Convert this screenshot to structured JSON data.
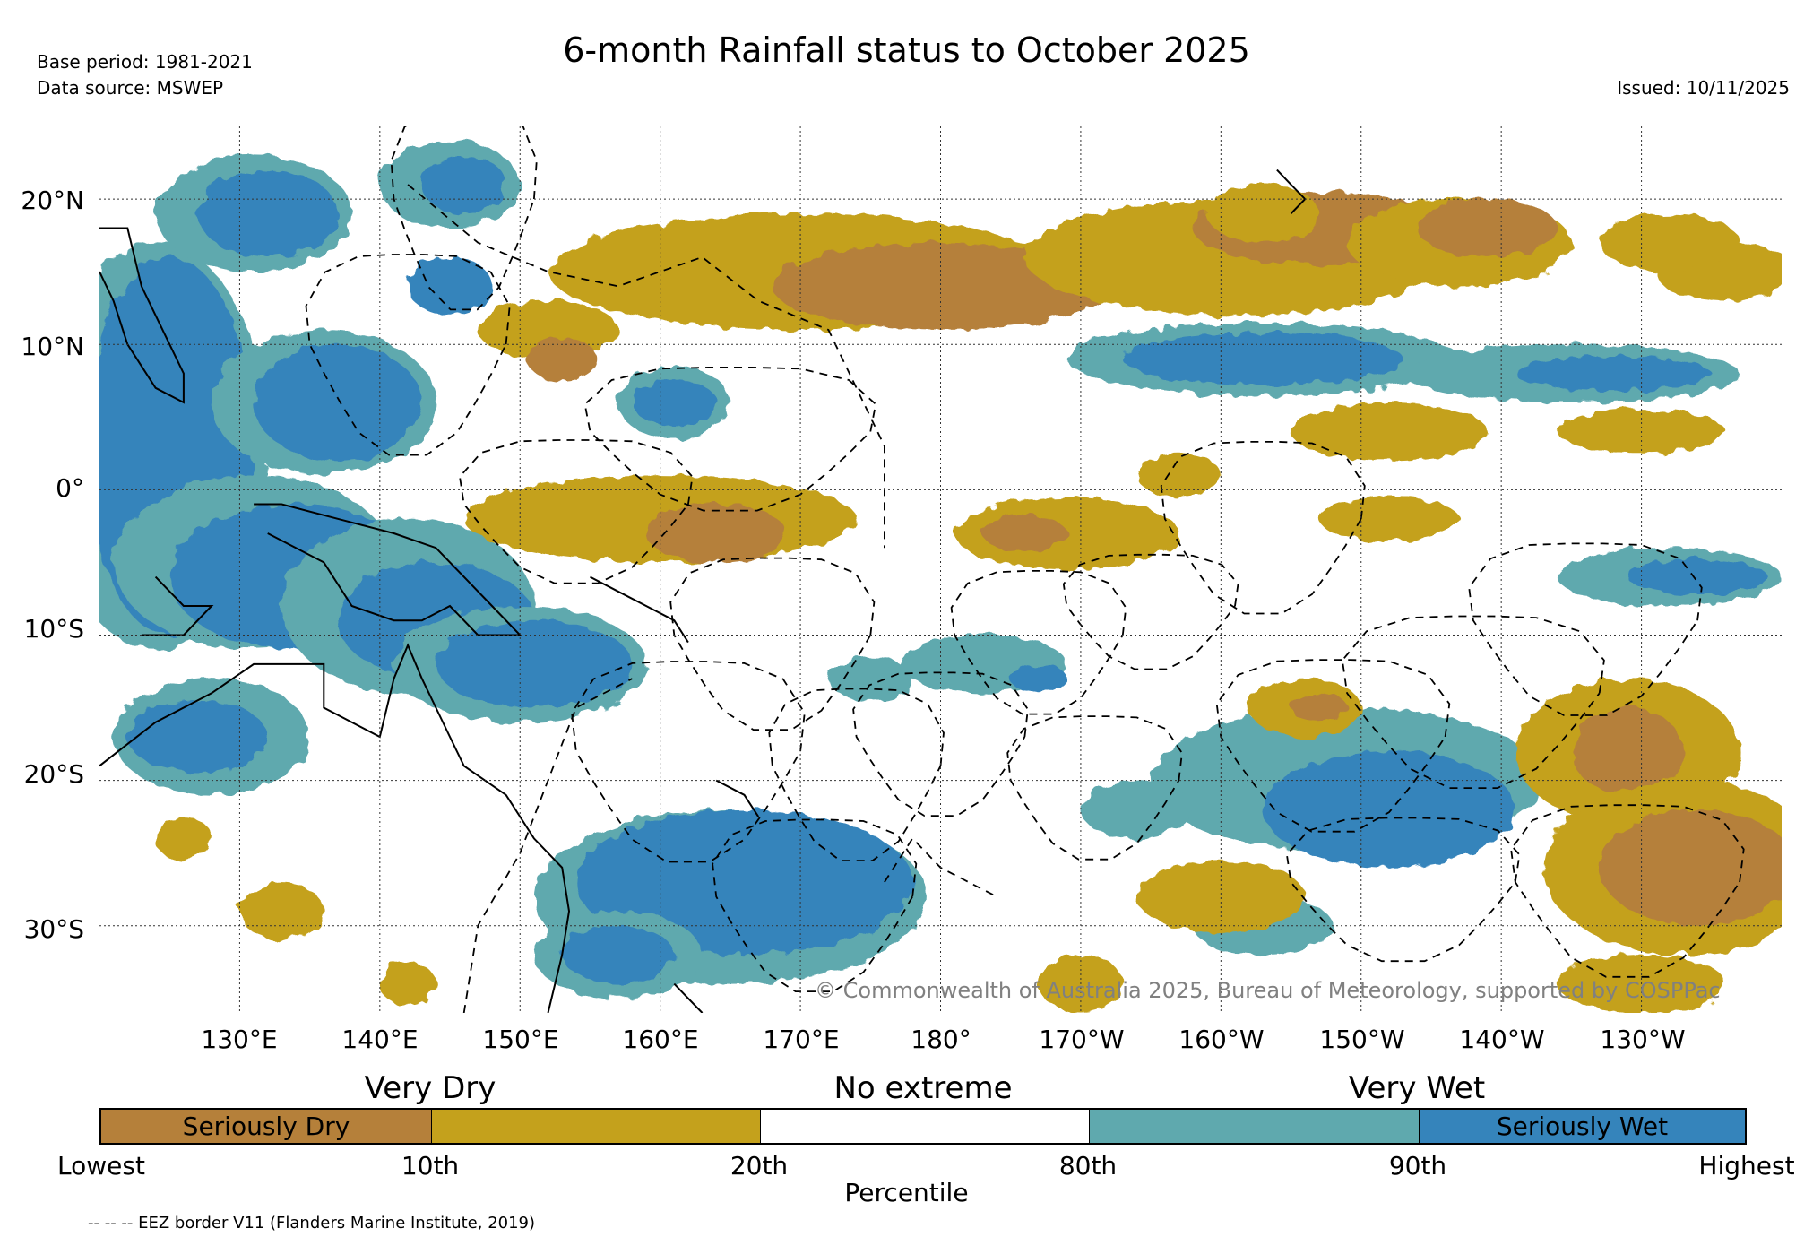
{
  "header": {
    "base_period": "Base period: 1981-2021",
    "data_source": "Data source: MSWEP",
    "title": "6-month Rainfall status to October 2025",
    "issued": "Issued: 10/11/2025"
  },
  "map": {
    "lon_range": [
      120,
      240
    ],
    "lat_range": [
      -36,
      25
    ],
    "lon_ticks": [
      "130°E",
      "140°E",
      "150°E",
      "160°E",
      "170°E",
      "180°",
      "170°W",
      "160°W",
      "150°W",
      "140°W",
      "130°W"
    ],
    "lat_ticks": [
      "20°N",
      "10°N",
      "0°",
      "10°S",
      "20°S",
      "30°S"
    ],
    "copyright": "© Commonwealth of Australia 2025, Bureau of Meteorology, supported by COSPPac",
    "colors": {
      "seriously_dry": "#b5803a",
      "very_dry": "#c4a11c",
      "no_extreme": "#ffffff",
      "very_wet": "#5fa9ae",
      "seriously_wet": "#3584bb"
    }
  },
  "legend": {
    "headings": {
      "dry": "Very Dry",
      "normal": "No extreme",
      "wet": "Very Wet"
    },
    "segments": [
      {
        "label": "Seriously Dry",
        "color": "#b5803a"
      },
      {
        "label": "",
        "color": "#c4a11c"
      },
      {
        "label": "",
        "color": "#ffffff"
      },
      {
        "label": "",
        "color": "#5fa9ae"
      },
      {
        "label": "Seriously Wet",
        "color": "#3584bb"
      }
    ],
    "percentile_ticks": [
      "Lowest",
      "10th",
      "20th",
      "80th",
      "90th",
      "Highest"
    ],
    "axis_label": "Percentile"
  },
  "footnote": "-- -- -- EEZ border V11 (Flanders Marine Institute, 2019)"
}
